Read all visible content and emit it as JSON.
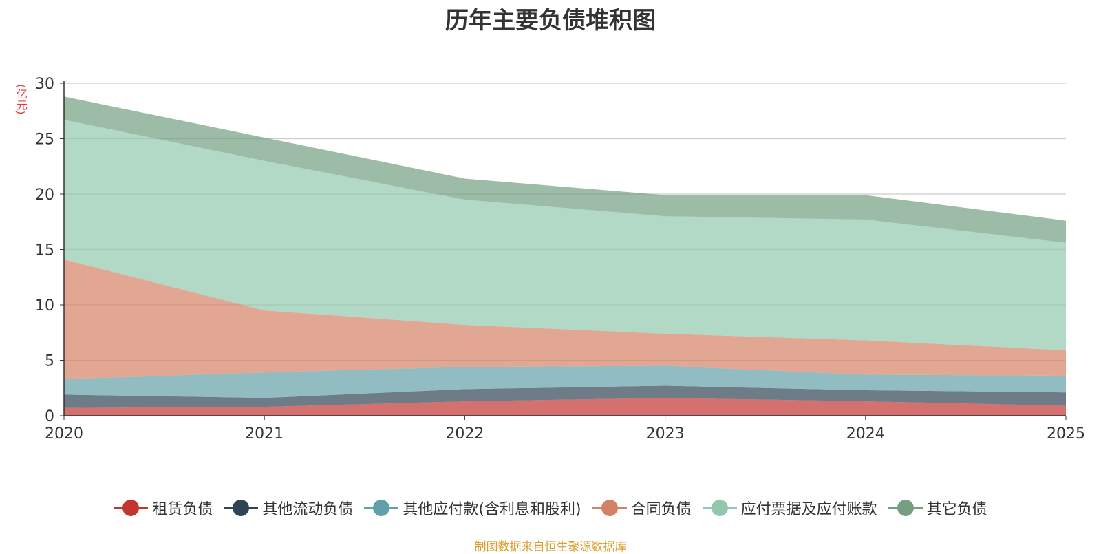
{
  "chart_data": {
    "type": "area",
    "stacked": true,
    "title": "历年主要负债堆积图",
    "unit_label": "(亿元)",
    "x": [
      "2020",
      "2021",
      "2022",
      "2023",
      "2024",
      "2025"
    ],
    "ylim": [
      0,
      30
    ],
    "yticks": [
      "0",
      "5",
      "10",
      "15",
      "20",
      "25",
      "30"
    ],
    "grid": true,
    "legend_position": "bottom",
    "series": [
      {
        "name": "租赁负债",
        "color": "#c23531",
        "values": [
          0.7,
          0.8,
          1.3,
          1.6,
          1.3,
          0.9
        ]
      },
      {
        "name": "其他流动负债",
        "color": "#2f4554",
        "values": [
          1.2,
          0.8,
          1.1,
          1.1,
          1.0,
          1.2
        ]
      },
      {
        "name": "其他应付款(含利息和股利)",
        "color": "#61a0a8",
        "values": [
          1.4,
          2.3,
          2.0,
          1.8,
          1.4,
          1.5
        ]
      },
      {
        "name": "合同负债",
        "color": "#d48265",
        "values": [
          10.8,
          5.6,
          3.8,
          2.9,
          3.1,
          2.3
        ]
      },
      {
        "name": "应付票据及应付账款",
        "color": "#91c7ae",
        "values": [
          12.6,
          13.5,
          11.3,
          10.6,
          10.9,
          9.7
        ]
      },
      {
        "name": "其它负债",
        "color": "#749f83",
        "values": [
          2.1,
          2.1,
          1.9,
          1.9,
          2.2,
          2.0
        ]
      }
    ],
    "source": "制图数据来自恒生聚源数据库"
  }
}
